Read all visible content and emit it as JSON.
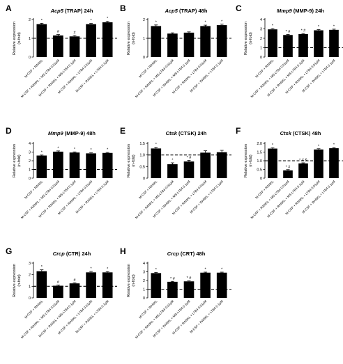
{
  "figure": {
    "ylabel_line1": "Relative expression",
    "ylabel_line2": "(n-fold)"
  },
  "chart_data": [
    {
      "panel": "A",
      "gene": "Acp5",
      "title_rest": " (TRAP) 24h",
      "type": "bar",
      "ylim": [
        0,
        2
      ],
      "yticks": [
        0,
        1,
        2
      ],
      "categories": [
        "M-CSF + RANKL",
        "M-CSF + RANKL + MS-LTB4 0.01μM",
        "M-CSF + RANKL + MS-LTB4 0.1μM",
        "M-CSF + RANKL + LTB4 0.01μM",
        "M-CSF + RANKL + LTB4 0.1μM"
      ],
      "values": [
        1.75,
        1.15,
        1.1,
        1.75,
        1.85
      ],
      "errors": [
        0.05,
        0.05,
        0.05,
        0.05,
        0.05
      ],
      "annotations": [
        "*",
        "#",
        "#",
        "*",
        "*"
      ],
      "reference_line": 1
    },
    {
      "panel": "B",
      "gene": "Acp5",
      "title_rest": " (TRAP) 48h",
      "type": "bar",
      "ylim": [
        0,
        2
      ],
      "yticks": [
        0,
        1,
        2
      ],
      "categories": [
        "M-CSF + RANKL",
        "M-CSF + RANKL + MS-LTB4 0.01μM",
        "M-CSF + RANKL + MS-LTB4 0.1μM",
        "M-CSF + RANKL + LTB4 0.01μM",
        "M-CSF + RANKL + LTB4 0.1μM"
      ],
      "values": [
        1.65,
        1.25,
        1.3,
        1.65,
        1.7
      ],
      "errors": [
        0.06,
        0.04,
        0.04,
        0.05,
        0.05
      ],
      "annotations": [
        "*",
        "",
        "",
        "*",
        "*"
      ],
      "reference_line": 1
    },
    {
      "panel": "C",
      "gene": "Mmp9",
      "title_rest": " (MMP-9) 24h",
      "type": "bar",
      "ylim": [
        0,
        4
      ],
      "yticks": [
        0,
        1,
        2,
        3,
        4
      ],
      "categories": [
        "M-CSF + RANKL",
        "M-CSF + RANKL + MS-LTB4 0.01μM",
        "M-CSF + RANKL + MS-LTB4 0.1μM",
        "M-CSF + RANKL + LTB4 0.01μM",
        "M-CSF + RANKL + LTB4 0.1μM"
      ],
      "values": [
        2.95,
        2.35,
        2.45,
        2.85,
        2.9
      ],
      "errors": [
        0.08,
        0.06,
        0.06,
        0.07,
        0.07
      ],
      "annotations": [
        "*",
        "* #",
        "* #",
        "*",
        "*"
      ],
      "reference_line": 1
    },
    {
      "panel": "D",
      "gene": "Mmp9",
      "title_rest": " (MMP-9) 48h",
      "type": "bar",
      "ylim": [
        0,
        4
      ],
      "yticks": [
        0,
        1,
        2,
        3,
        4
      ],
      "categories": [
        "M-CSF + RANKL",
        "M-CSF + RANKL + MS-LTB4 0.01μM",
        "M-CSF + RANKL + MS-LTB4 0.1μM",
        "M-CSF + RANKL + LTB4 0.01μM",
        "M-CSF + RANKL + LTB4 0.1μM"
      ],
      "values": [
        2.6,
        3.05,
        2.95,
        2.85,
        2.9
      ],
      "errors": [
        0.06,
        0.08,
        0.07,
        0.06,
        0.06
      ],
      "annotations": [
        "*",
        "*",
        "*",
        "*",
        "*"
      ],
      "reference_line": 1
    },
    {
      "panel": "E",
      "gene": "Ctsk",
      "title_rest": " (CTSK) 24h",
      "type": "bar",
      "ylim": [
        0,
        1.5
      ],
      "yticks": [
        0,
        0.5,
        1.0,
        1.5
      ],
      "categories": [
        "M-CSF + RANKL",
        "M-CSF + RANKL + MS-LTB4 0.01μM",
        "M-CSF + RANKL + MS-LTB4 0.1μM",
        "M-CSF + RANKL + LTB4 0.01μM",
        "M-CSF + RANKL + LTB4 0.1μM"
      ],
      "values": [
        1.28,
        0.6,
        0.72,
        1.1,
        1.12
      ],
      "errors": [
        0.05,
        0.06,
        0.05,
        0.08,
        0.08
      ],
      "annotations": [
        "*",
        "*",
        "* #",
        "",
        ""
      ],
      "reference_line": 1
    },
    {
      "panel": "F",
      "gene": "Ctsk",
      "title_rest": " (CTSK) 48h",
      "type": "bar",
      "ylim": [
        0,
        2
      ],
      "yticks": [
        0,
        0.5,
        1.0,
        1.5,
        2.0
      ],
      "categories": [
        "M-CSF + RANKL",
        "M-CSF + RANKL + MS-LTB4 0.01μM",
        "M-CSF + RANKL + MS-LTB4 0.1μM",
        "M-CSF + RANKL + LTB4 0.01μM",
        "M-CSF + RANKL + LTB4 0.1μM"
      ],
      "values": [
        1.7,
        0.45,
        0.85,
        1.65,
        1.72
      ],
      "errors": [
        0.05,
        0.04,
        0.03,
        0.04,
        0.04
      ],
      "annotations": [
        "*",
        "* #",
        "* # &",
        "*",
        "*"
      ],
      "reference_line": 1
    },
    {
      "panel": "G",
      "gene": "Crcp",
      "title_rest": " (CTR) 24h",
      "type": "bar",
      "ylim": [
        0,
        3
      ],
      "yticks": [
        0,
        1,
        2,
        3
      ],
      "categories": [
        "M-CSF + RANKL",
        "M-CSF + RANKL + MS-LTB4 0.01μM",
        "M-CSF + RANKL + MS-LTB4 0.1μM",
        "M-CSF + RANKL + LTB4 0.01μM",
        "M-CSF + RANKL + LTB4 0.1μM"
      ],
      "values": [
        2.3,
        1.05,
        1.25,
        2.2,
        2.2
      ],
      "errors": [
        0.12,
        0.05,
        0.05,
        0.08,
        0.06
      ],
      "annotations": [
        "*",
        "#",
        "#",
        "*",
        "*"
      ],
      "reference_line": 1
    },
    {
      "panel": "H",
      "gene": "Crcp",
      "title_rest": " (CRT) 48h",
      "type": "bar",
      "ylim": [
        0,
        4
      ],
      "yticks": [
        0,
        1,
        2,
        3,
        4
      ],
      "categories": [
        "M-CSF + RANKL",
        "M-CSF + RANKL + MS-LTB4 0.01μM",
        "M-CSF + RANKL + MS-LTB4 0.1μM",
        "M-CSF + RANKL + LTB4 0.01μM",
        "M-CSF + RANKL + LTB4 0.1μM"
      ],
      "values": [
        2.85,
        1.85,
        1.9,
        2.9,
        2.9
      ],
      "errors": [
        0.08,
        0.05,
        0.05,
        0.06,
        0.06
      ],
      "annotations": [
        "*",
        "* #",
        "* #",
        "*",
        "*"
      ],
      "reference_line": 1
    }
  ]
}
